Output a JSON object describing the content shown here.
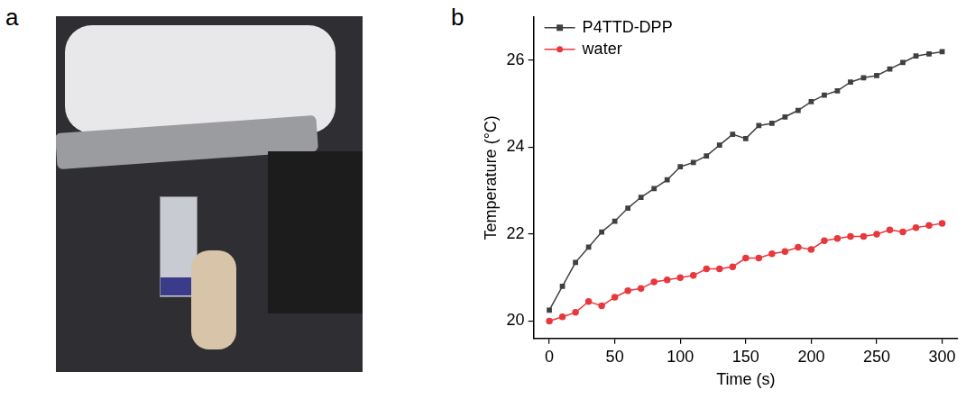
{
  "panel_labels": [
    "a",
    "b"
  ],
  "chart_data": {
    "type": "line",
    "x_label": "Time (s)",
    "y_label": "Temperature (°C)",
    "x": [
      0,
      10,
      20,
      30,
      40,
      50,
      60,
      70,
      80,
      90,
      100,
      110,
      120,
      130,
      140,
      150,
      160,
      170,
      180,
      190,
      200,
      210,
      220,
      230,
      240,
      250,
      260,
      270,
      280,
      290,
      300
    ],
    "series": [
      {
        "name": "P4TTD-DPP",
        "color": "#404040",
        "marker": "square",
        "line_style": "solid",
        "values": [
          20.25,
          20.8,
          21.35,
          21.7,
          22.05,
          22.3,
          22.6,
          22.85,
          23.05,
          23.25,
          23.55,
          23.65,
          23.8,
          24.05,
          24.3,
          24.2,
          24.5,
          24.55,
          24.7,
          24.85,
          25.05,
          25.2,
          25.3,
          25.5,
          25.6,
          25.65,
          25.8,
          25.95,
          26.1,
          26.15,
          26.2
        ]
      },
      {
        "name": "water",
        "color": "#e8383d",
        "marker": "circle",
        "line_style": "solid",
        "values": [
          20.0,
          20.1,
          20.2,
          20.45,
          20.35,
          20.55,
          20.7,
          20.75,
          20.9,
          20.95,
          21.0,
          21.05,
          21.2,
          21.2,
          21.25,
          21.45,
          21.45,
          21.55,
          21.6,
          21.7,
          21.65,
          21.85,
          21.9,
          21.95,
          21.95,
          22.0,
          22.1,
          22.05,
          22.15,
          22.2,
          22.25
        ]
      }
    ],
    "xlim": [
      -12,
      312
    ],
    "xticks": [
      0,
      50,
      100,
      150,
      200,
      250,
      300
    ],
    "ylim": [
      19.6,
      27
    ],
    "yticks": [
      20,
      22,
      24,
      26
    ],
    "grid": false,
    "legend": "upper left"
  }
}
